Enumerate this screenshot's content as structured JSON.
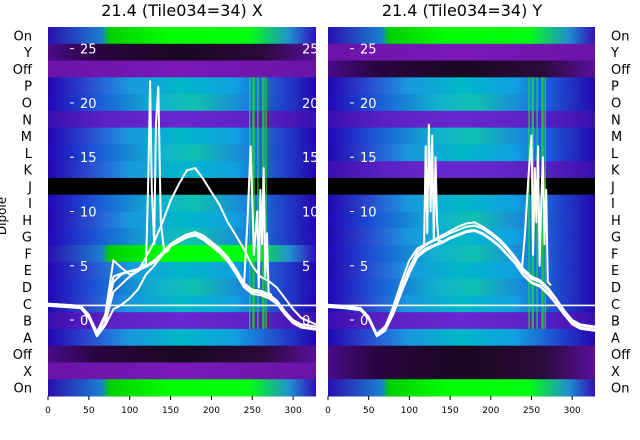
{
  "chart_data": [
    {
      "type": "heatmap",
      "title": "21.4 (Tile034=34) X",
      "ylabel": "Dipole",
      "x_ticks": [
        0,
        50,
        100,
        150,
        200,
        250,
        300
      ],
      "xlim": [
        0,
        328
      ],
      "y_ticks": [
        0,
        5,
        10,
        15,
        20,
        25
      ],
      "ylim": [
        -7,
        27
      ],
      "row_labels": [
        "On",
        "Y",
        "Off",
        "P",
        "O",
        "N",
        "M",
        "L",
        "K",
        "J",
        "I",
        "H",
        "G",
        "F",
        "E",
        "D",
        "C",
        "B",
        "A",
        "Off",
        "X",
        "On"
      ],
      "series": [
        {
          "name": "",
          "x": [
            0,
            20,
            40,
            50,
            60,
            70,
            80,
            90,
            100,
            110,
            120,
            130,
            140,
            150,
            160,
            170,
            180,
            190,
            200,
            210,
            220,
            230,
            240,
            250,
            260,
            270,
            280,
            290,
            300,
            310,
            328
          ],
          "y": [
            1.5,
            1.4,
            1.3,
            0.5,
            -1.2,
            0.2,
            3.5,
            4.2,
            4.5,
            4.6,
            4.9,
            5.3,
            6,
            6.8,
            7.3,
            7.7,
            7.9,
            7.6,
            7,
            6.4,
            5.6,
            4.5,
            3.2,
            2.6,
            2.5,
            2.2,
            1.6,
            0.6,
            -0.2,
            -0.6,
            -0.8
          ]
        },
        {
          "name": "",
          "x": [
            0,
            20,
            40,
            50,
            60,
            70,
            80,
            90,
            100,
            110,
            120,
            130,
            140,
            150,
            160,
            170,
            180,
            190,
            200,
            210,
            220,
            230,
            240,
            250,
            260,
            270,
            280,
            290,
            300,
            310,
            328
          ],
          "y": [
            1.4,
            1.3,
            1.2,
            0.3,
            -1.4,
            -0.3,
            2.6,
            3.3,
            4,
            4.5,
            5,
            5.5,
            6.2,
            7,
            7.5,
            7.9,
            8.1,
            7.8,
            7.2,
            6.6,
            5.8,
            4.7,
            3.4,
            2.8,
            2.7,
            2.4,
            1.8,
            0.8,
            0,
            -0.4,
            -0.6
          ]
        },
        {
          "name": "",
          "x": [
            0,
            20,
            40,
            50,
            60,
            70,
            80,
            90,
            100,
            110,
            120,
            130,
            140,
            150,
            160,
            170,
            180,
            190,
            200,
            210,
            220,
            230,
            240,
            250,
            260,
            270,
            280,
            290,
            300,
            310,
            328
          ],
          "y": [
            1.3,
            1.2,
            1.1,
            0.2,
            -1.5,
            -0.5,
            1,
            1.4,
            2,
            2.8,
            4.2,
            5,
            6,
            6.8,
            7.2,
            7.6,
            7.8,
            7.4,
            6.8,
            6.2,
            5.4,
            4.3,
            3,
            2.4,
            2.3,
            2,
            1.5,
            0.5,
            -0.3,
            -0.7,
            -0.9
          ]
        },
        {
          "name": "",
          "x": [
            0,
            20,
            40,
            50,
            60,
            70,
            80,
            90,
            100,
            110,
            120,
            130,
            140,
            150,
            160,
            170,
            180,
            190,
            200,
            210,
            220,
            230,
            240,
            250,
            260,
            270,
            280,
            290,
            300,
            310,
            328
          ],
          "y": [
            1.5,
            1.4,
            1.3,
            0.4,
            -1.1,
            0.5,
            5.5,
            4.8,
            4.2,
            4.5,
            5.8,
            7.2,
            9,
            11,
            12.5,
            13.8,
            14,
            13,
            11.8,
            10.6,
            9,
            7.8,
            6.5,
            5,
            4,
            3.6,
            3,
            2,
            1,
            0.2,
            -0.4
          ]
        },
        {
          "name": "",
          "x": [
            0,
            20,
            40,
            50,
            60,
            70,
            80,
            90,
            100,
            110,
            120,
            121,
            123,
            125,
            127,
            130,
            132,
            135,
            138,
            142,
            146,
            150,
            160
          ],
          "y": [
            1.4,
            1.3,
            1.2,
            0.3,
            -1.3,
            0.3,
            4,
            4.3,
            4.5,
            4.7,
            5.2,
            8,
            14,
            22,
            12,
            7,
            18,
            21.5,
            9,
            6.5,
            6.3,
            6.8,
            7.4
          ]
        },
        {
          "name": "",
          "x": [
            240,
            244,
            248,
            252,
            256,
            258,
            260,
            262,
            264,
            266,
            268,
            270,
            274
          ],
          "y": [
            3.4,
            9,
            16,
            6,
            10,
            3,
            12,
            7,
            14,
            4,
            8,
            2.5,
            2.3
          ]
        }
      ]
    },
    {
      "type": "heatmap",
      "title": "21.4 (Tile034=34) Y",
      "x_ticks": [
        0,
        50,
        100,
        150,
        200,
        250,
        300
      ],
      "xlim": [
        0,
        328
      ],
      "y_ticks": [
        0,
        5,
        10,
        15,
        20,
        25
      ],
      "ylim": [
        -7,
        27
      ],
      "row_labels": [
        "On",
        "Y",
        "Off",
        "P",
        "O",
        "N",
        "M",
        "L",
        "K",
        "J",
        "I",
        "H",
        "G",
        "F",
        "E",
        "D",
        "C",
        "B",
        "A",
        "Off",
        "X",
        "On"
      ],
      "series": [
        {
          "name": "",
          "x": [
            0,
            20,
            40,
            50,
            60,
            70,
            80,
            90,
            100,
            110,
            120,
            130,
            140,
            150,
            160,
            170,
            180,
            190,
            200,
            210,
            220,
            230,
            240,
            250,
            260,
            270,
            280,
            290,
            300,
            310,
            328
          ],
          "y": [
            1.3,
            1.2,
            1,
            0.2,
            -1.4,
            -0.8,
            0.8,
            2.8,
            4.5,
            6,
            6.6,
            6.9,
            7.2,
            7.6,
            7.9,
            8.2,
            8.3,
            8,
            7.5,
            6.9,
            6.1,
            5.3,
            4.2,
            3.5,
            3.2,
            2.5,
            1.6,
            0.6,
            -0.3,
            -0.7,
            -0.9
          ]
        },
        {
          "name": "",
          "x": [
            0,
            20,
            40,
            50,
            60,
            70,
            80,
            90,
            100,
            110,
            120,
            130,
            140,
            150,
            160,
            170,
            180,
            190,
            200,
            210,
            220,
            230,
            240,
            250,
            260,
            270,
            280,
            290,
            300,
            310,
            328
          ],
          "y": [
            1.2,
            1.1,
            0.9,
            0.1,
            -1.5,
            -1,
            0.5,
            2.5,
            4.3,
            5.8,
            6.4,
            6.8,
            7.1,
            7.5,
            7.8,
            8.1,
            8.2,
            7.9,
            7.4,
            6.8,
            6,
            5.2,
            4.1,
            3.4,
            3.1,
            2.4,
            1.5,
            0.5,
            -0.4,
            -0.8,
            -1
          ]
        },
        {
          "name": "",
          "x": [
            0,
            20,
            40,
            50,
            60,
            70,
            80,
            90,
            100,
            110,
            120,
            130,
            140,
            150,
            160,
            170,
            180,
            190,
            200,
            210,
            220,
            230,
            240,
            250,
            260,
            270,
            280,
            290,
            300,
            310,
            328
          ],
          "y": [
            1.4,
            1.3,
            1.1,
            0.3,
            -1.3,
            -0.6,
            1,
            3,
            4.8,
            6.3,
            6.9,
            7.3,
            7.6,
            8,
            8.3,
            8.6,
            8.7,
            8.4,
            7.9,
            7.3,
            6.5,
            5.6,
            4.5,
            3.8,
            3.5,
            2.8,
            1.9,
            0.8,
            -0.1,
            -0.5,
            -0.7
          ]
        },
        {
          "name": "",
          "x": [
            0,
            20,
            40,
            50,
            60,
            70,
            80,
            90,
            100,
            110,
            120,
            130,
            140,
            150,
            160,
            170,
            180,
            190,
            200,
            210,
            220,
            230,
            240,
            250,
            260,
            270,
            280,
            290,
            300,
            310,
            328
          ],
          "y": [
            1.3,
            1.2,
            1,
            0.2,
            -1.4,
            -0.7,
            1.2,
            3.5,
            5.5,
            6.6,
            7,
            7.4,
            7.8,
            8.2,
            8.6,
            8.9,
            9,
            8.6,
            8.1,
            7.5,
            6.7,
            5.8,
            4.7,
            4,
            3.7,
            3,
            2,
            0.9,
            0,
            -0.4,
            -0.6
          ]
        },
        {
          "name": "",
          "x": [
            118,
            120,
            122,
            124,
            126,
            128,
            130,
            132,
            134,
            136,
            140
          ],
          "y": [
            6.8,
            16,
            8,
            18,
            10,
            17,
            7.5,
            15,
            9,
            7.2,
            7.3
          ]
        },
        {
          "name": "",
          "x": [
            238,
            242,
            246,
            250,
            252,
            254,
            256,
            258,
            260,
            262,
            264,
            266,
            268,
            270,
            274
          ],
          "y": [
            4.5,
            8,
            13,
            17,
            6,
            14,
            9,
            16,
            5,
            11,
            15,
            7,
            12,
            3.5,
            3.2
          ]
        }
      ]
    }
  ]
}
